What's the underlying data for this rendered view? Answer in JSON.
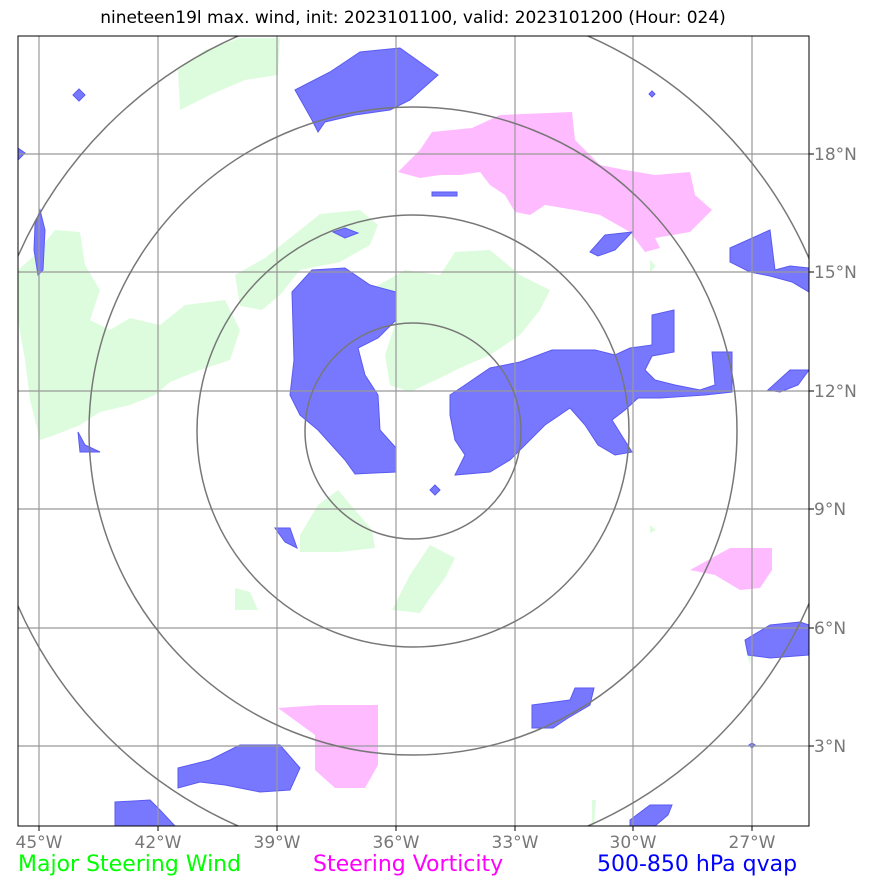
{
  "title": "nineteen19l max. wind, init: 2023101100, valid: 2023101200 (Hour: 024)",
  "x_ticks": [
    "45°W",
    "42°W",
    "39°W",
    "36°W",
    "33°W",
    "30°W",
    "27°W"
  ],
  "y_ticks": [
    "18°N",
    "15°N",
    "12°N",
    "9°N",
    "6°N",
    "3°N"
  ],
  "legend": {
    "green": "Major Steering Wind",
    "magenta": "Steering Vorticity",
    "blue": "500-850 hPa qvap"
  },
  "colors": {
    "green_fill": "#ddfcdd",
    "magenta_fill": "#ffbbff",
    "blue_fill": "#7878ff",
    "grid": "#888888",
    "rings": "#777777"
  }
}
